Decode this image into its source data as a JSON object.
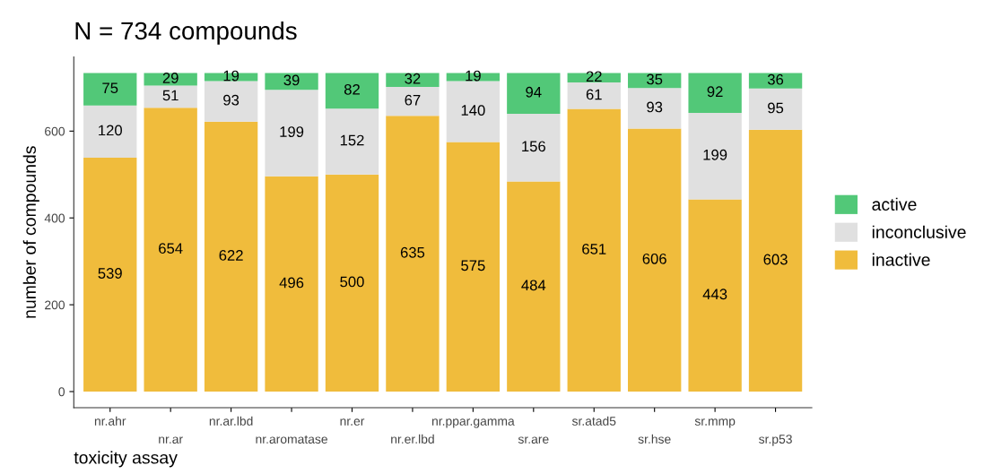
{
  "chart_data": {
    "type": "bar",
    "stacked": true,
    "title": "N = 734 compounds",
    "xlabel": "toxicity assay",
    "ylabel": "number of compounds",
    "categories": [
      "nr.ahr",
      "nr.ar",
      "nr.ar.lbd",
      "nr.aromatase",
      "nr.er",
      "nr.er.lbd",
      "nr.ppar.gamma",
      "sr.are",
      "sr.atad5",
      "sr.hse",
      "sr.mmp",
      "sr.p53"
    ],
    "series": [
      {
        "name": "inactive",
        "color": "#f0bc3c",
        "values": [
          539,
          654,
          622,
          496,
          500,
          635,
          575,
          484,
          651,
          606,
          443,
          603
        ]
      },
      {
        "name": "inconclusive",
        "color": "#e0e0e0",
        "values": [
          120,
          51,
          93,
          199,
          152,
          67,
          140,
          156,
          61,
          93,
          199,
          95
        ]
      },
      {
        "name": "active",
        "color": "#52c878",
        "values": [
          75,
          29,
          19,
          39,
          82,
          32,
          19,
          94,
          22,
          35,
          92,
          36
        ]
      }
    ],
    "ylim": [
      -37,
      771
    ],
    "yticks": [
      0,
      200,
      400,
      600
    ],
    "grid": false,
    "legend": "right",
    "data_labels": true
  }
}
